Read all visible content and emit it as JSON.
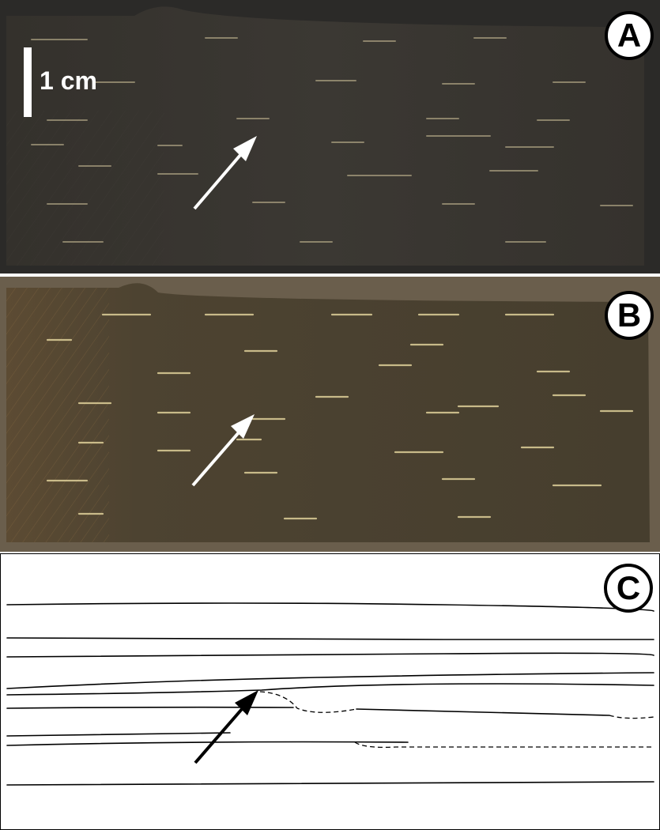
{
  "panels": [
    {
      "id": "A",
      "label": "A"
    },
    {
      "id": "B",
      "label": "B"
    },
    {
      "id": "C",
      "label": "C"
    }
  ],
  "scale": {
    "label": "1 cm"
  },
  "colors": {
    "sample_a": "#3b3833",
    "sample_b": "#4e4533",
    "lamina": "#e8d9a0",
    "arrow_light": "#ffffff",
    "arrow_dark": "#000000"
  }
}
